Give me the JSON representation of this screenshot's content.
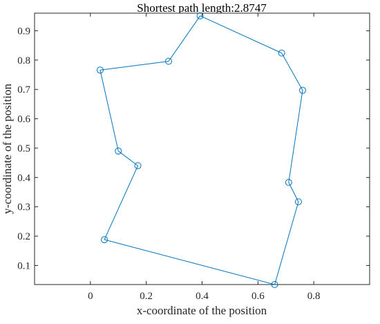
{
  "chart_data": {
    "type": "scatter",
    "title": "Shortest path length:2.8747",
    "xlabel": "x-coordinate of the position",
    "ylabel": "y-coordinate of the position",
    "xlim": [
      -0.2,
      1.0
    ],
    "ylim": [
      0.035,
      0.96
    ],
    "xticks": [
      0,
      0.2,
      0.4,
      0.6,
      0.8
    ],
    "xtick_labels": [
      "0",
      "0.2",
      "0.4",
      "0.6",
      "0.8"
    ],
    "yticks": [
      0.1,
      0.2,
      0.3,
      0.4,
      0.5,
      0.6,
      0.7,
      0.8,
      0.9
    ],
    "ytick_labels": [
      "0.1",
      "0.2",
      "0.3",
      "0.4",
      "0.5",
      "0.6",
      "0.7",
      "0.8",
      "0.9"
    ],
    "grid": false,
    "line_color": "#0072BD",
    "marker": "circle-open",
    "closed_path": true,
    "path": [
      {
        "x": 0.393,
        "y": 0.951
      },
      {
        "x": 0.685,
        "y": 0.824
      },
      {
        "x": 0.76,
        "y": 0.697
      },
      {
        "x": 0.71,
        "y": 0.383
      },
      {
        "x": 0.745,
        "y": 0.317
      },
      {
        "x": 0.66,
        "y": 0.035
      },
      {
        "x": 0.05,
        "y": 0.188
      },
      {
        "x": 0.17,
        "y": 0.44
      },
      {
        "x": 0.1,
        "y": 0.49
      },
      {
        "x": 0.035,
        "y": 0.766
      },
      {
        "x": 0.28,
        "y": 0.796
      }
    ]
  }
}
